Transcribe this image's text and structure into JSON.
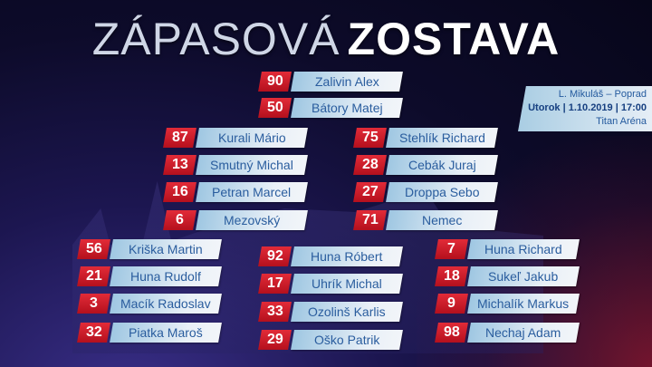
{
  "title": {
    "light": "ZÁPASOVÁ",
    "bold": "ZOSTAVA"
  },
  "match": {
    "teams": "L. Mikuláš – Poprad",
    "datetime": "Utorok | 1.10.2019 | 17:00",
    "venue": "Titan Aréna"
  },
  "colors": {
    "number_bg": "#d11e2c",
    "name_bg": "#e9f0f7",
    "name_text": "#2a5d9e"
  },
  "groups": [
    {
      "id": "goalies",
      "players": [
        {
          "number": "90",
          "name": "Zalivin Alex"
        },
        {
          "number": "50",
          "name": "Bátory Matej"
        }
      ]
    },
    {
      "id": "defense-left",
      "players": [
        {
          "number": "87",
          "name": "Kurali Mário"
        },
        {
          "number": "13",
          "name": "Smutný Michal"
        },
        {
          "number": "16",
          "name": "Petran Marcel"
        },
        {
          "number": "6",
          "name": "Mezovský"
        }
      ]
    },
    {
      "id": "defense-right",
      "players": [
        {
          "number": "75",
          "name": "Stehlík Richard"
        },
        {
          "number": "28",
          "name": "Cebák Juraj"
        },
        {
          "number": "27",
          "name": "Droppa Sebo"
        },
        {
          "number": "71",
          "name": "Nemec"
        }
      ]
    },
    {
      "id": "forwards-left",
      "players": [
        {
          "number": "56",
          "name": "Kriška Martin"
        },
        {
          "number": "21",
          "name": "Huna Rudolf"
        },
        {
          "number": "3",
          "name": "Macík Radoslav"
        },
        {
          "number": "32",
          "name": "Piatka Maroš"
        }
      ]
    },
    {
      "id": "forwards-center",
      "players": [
        {
          "number": "92",
          "name": "Huna Róbert"
        },
        {
          "number": "17",
          "name": "Uhrík Michal"
        },
        {
          "number": "33",
          "name": "Ozolinš Karlis"
        },
        {
          "number": "29",
          "name": "Oško Patrik"
        }
      ]
    },
    {
      "id": "forwards-right",
      "players": [
        {
          "number": "7",
          "name": "Huna Richard"
        },
        {
          "number": "18",
          "name": "Sukeľ Jakub"
        },
        {
          "number": "9",
          "name": "Michalík Markus"
        },
        {
          "number": "98",
          "name": "Nechaj Adam"
        }
      ]
    }
  ]
}
